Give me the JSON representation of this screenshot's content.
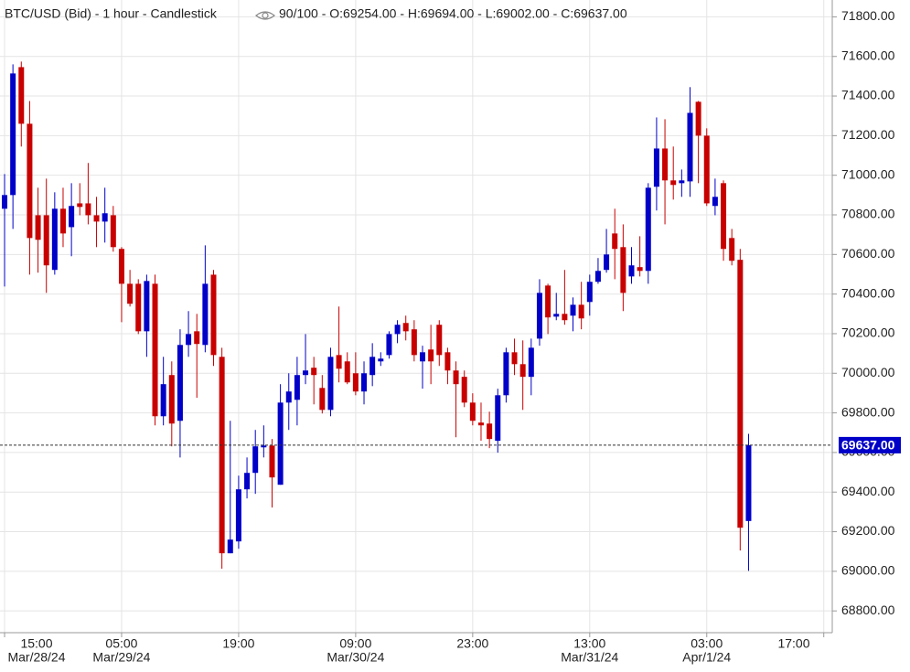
{
  "chart_data": {
    "type": "candlestick",
    "title": "BTC/USD (Bid) - 1 hour - Candlestick",
    "info": "90/100 - O:69254.00 - H:69694.00 - L:69002.00 - C:69637.00",
    "up_color": "#0000c8",
    "down_color": "#c80000",
    "grid": true,
    "ylim": [
      68690,
      71885
    ],
    "yticks": [
      {
        "value": 68800,
        "label": "68800.00"
      },
      {
        "value": 69000,
        "label": "69000.00"
      },
      {
        "value": 69200,
        "label": "69200.00"
      },
      {
        "value": 69400,
        "label": "69400.00"
      },
      {
        "value": 69600,
        "label": "69600.00"
      },
      {
        "value": 69800,
        "label": "69800.00"
      },
      {
        "value": 70000,
        "label": "70000.00"
      },
      {
        "value": 70200,
        "label": "70200.00"
      },
      {
        "value": 70400,
        "label": "70400.00"
      },
      {
        "value": 70600,
        "label": "70600.00"
      },
      {
        "value": 70800,
        "label": "70800.00"
      },
      {
        "value": 71000,
        "label": "71000.00"
      },
      {
        "value": 71200,
        "label": "71200.00"
      },
      {
        "value": 71400,
        "label": "71400.00"
      },
      {
        "value": 71600,
        "label": "71600.00"
      },
      {
        "value": 71800,
        "label": "71800.00"
      }
    ],
    "xticks": [
      {
        "value": 0,
        "label": "15:00"
      },
      {
        "value": 14,
        "label": "05:00"
      },
      {
        "value": 28,
        "label": "19:00"
      },
      {
        "value": 42,
        "label": "09:00"
      },
      {
        "value": 56,
        "label": "23:00"
      },
      {
        "value": 70,
        "label": "13:00"
      },
      {
        "value": 84,
        "label": "03:00"
      },
      {
        "value": 98,
        "label": "17:00"
      }
    ],
    "xdates": [
      {
        "value": 0,
        "label": "Mar/28/24"
      },
      {
        "value": 14,
        "label": "Mar/29/24"
      },
      {
        "value": 42,
        "label": "Mar/30/24"
      },
      {
        "value": 70,
        "label": "Mar/31/24"
      },
      {
        "value": 84,
        "label": "Apr/1/24"
      }
    ],
    "last_price": {
      "value": 69637,
      "label": "69637.00"
    },
    "open": [
      70831,
      70900,
      71546,
      71260,
      70798,
      70798,
      70522,
      70831,
      70738,
      70858,
      70858,
      70798,
      70766,
      70798,
      70628,
      70452,
      70452,
      70212,
      70452,
      69783,
      69991,
      69760,
      70143,
      70212,
      70143,
      70498,
      70083,
      69091,
      69151,
      69414,
      69497,
      69626,
      69635,
      69437,
      69852,
      69866,
      69991,
      70028,
      69926,
      69815,
      70092,
      70060,
      70000,
      69908,
      69991,
      70060,
      70092,
      70198,
      70254,
      70222,
      70060,
      70120,
      70245,
      70106,
      70014,
      69982,
      69852,
      69751,
      69746,
      69659,
      69889,
      70106,
      70046,
      69982,
      70175,
      70443,
      70286,
      70300,
      70291,
      70346,
      70360,
      70462,
      70522,
      70706,
      70637,
      70489,
      70536,
      70517,
      70942,
      71135,
      70974,
      70960,
      70969,
      71371,
      71200,
      70845,
      70960,
      70683,
      70573,
      69254
    ],
    "high": [
      71006,
      71560,
      71574,
      71375,
      70937,
      70983,
      70914,
      70937,
      70960,
      70960,
      71062,
      70891,
      70937,
      70845,
      70637,
      70522,
      70475,
      70498,
      70498,
      70083,
      70060,
      70222,
      70314,
      70300,
      70646,
      70522,
      70129,
      69760,
      69483,
      69575,
      69714,
      69737,
      69668,
      69945,
      70000,
      70083,
      70198,
      70083,
      69991,
      70129,
      70337,
      70106,
      70106,
      70060,
      70152,
      70106,
      70212,
      70268,
      70291,
      70268,
      70139,
      70245,
      70268,
      70129,
      70060,
      70014,
      69899,
      69852,
      69806,
      69922,
      70129,
      70175,
      70166,
      70175,
      70475,
      70452,
      70406,
      70522,
      70383,
      70462,
      70498,
      70582,
      70729,
      70831,
      70752,
      70637,
      70692,
      70960,
      71292,
      71283,
      71145,
      71029,
      71445,
      71375,
      71237,
      70983,
      70974,
      70729,
      70628,
      69694
    ],
    "low": [
      70438,
      70729,
      71145,
      70498,
      70508,
      70406,
      70498,
      70637,
      70591,
      70798,
      70752,
      70637,
      70660,
      70614,
      70258,
      70337,
      70198,
      70083,
      69737,
      69737,
      69631,
      69575,
      70083,
      69876,
      70106,
      70037,
      69013,
      69091,
      69114,
      69368,
      69391,
      69575,
      69322,
      69437,
      69714,
      69737,
      69945,
      69843,
      69797,
      69783,
      69954,
      69945,
      69889,
      69843,
      69935,
      70037,
      70074,
      70152,
      70166,
      70060,
      69922,
      69945,
      70037,
      69945,
      69677,
      69829,
      69737,
      69659,
      69622,
      69599,
      69852,
      69991,
      69815,
      69889,
      70139,
      70198,
      70268,
      70245,
      70212,
      70222,
      70291,
      70452,
      70508,
      70475,
      70314,
      70452,
      70489,
      70452,
      70822,
      70752,
      70877,
      70891,
      70891,
      70960,
      70845,
      70798,
      70568,
      70545,
      69105,
      69002
    ],
    "close": [
      70900,
      71514,
      71260,
      70683,
      70674,
      70545,
      70831,
      70706,
      70845,
      70840,
      70798,
      70766,
      70808,
      70637,
      70452,
      70351,
      70212,
      70466,
      69783,
      69945,
      69746,
      70143,
      70198,
      70148,
      70452,
      70092,
      69091,
      69160,
      69414,
      69497,
      69631,
      69635,
      69474,
      69852,
      69908,
      69991,
      70014,
      69991,
      69815,
      70083,
      70023,
      69954,
      69908,
      70000,
      70083,
      70074,
      70198,
      70245,
      70212,
      70092,
      70106,
      70060,
      70092,
      70014,
      69945,
      69852,
      69760,
      69737,
      69668,
      69889,
      70106,
      70046,
      69982,
      70129,
      70406,
      70282,
      70300,
      70268,
      70346,
      70277,
      70462,
      70517,
      70600,
      70628,
      70406,
      70545,
      70517,
      70937,
      71135,
      70974,
      70951,
      70974,
      71315,
      71200,
      70858,
      70891,
      70628,
      70568,
      69220,
      69637
    ]
  }
}
